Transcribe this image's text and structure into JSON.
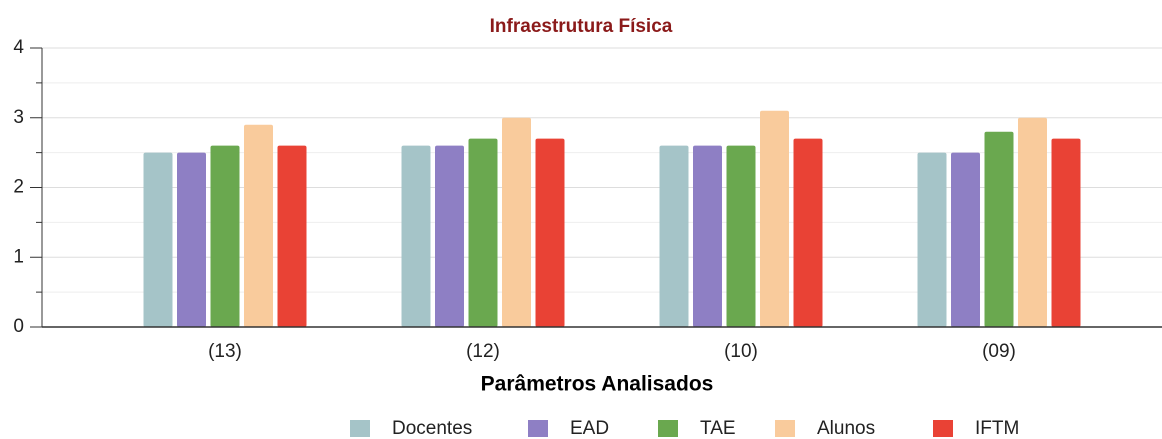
{
  "chart_data": {
    "type": "bar",
    "title": "Infraestrutura Física",
    "x_label": "Parâmetros Analisados",
    "categories": [
      "(13)",
      "(12)",
      "(10)",
      "(09)"
    ],
    "series": [
      {
        "name": "Docentes",
        "color": "#a5c4c8",
        "values": [
          2.5,
          2.6,
          2.6,
          2.5
        ]
      },
      {
        "name": "EAD",
        "color": "#8e7fc4",
        "values": [
          2.5,
          2.6,
          2.6,
          2.5
        ]
      },
      {
        "name": "TAE",
        "color": "#6aa84f",
        "values": [
          2.6,
          2.7,
          2.6,
          2.8
        ]
      },
      {
        "name": "Alunos",
        "color": "#f9cb9c",
        "values": [
          2.9,
          3.0,
          3.1,
          3.0
        ]
      },
      {
        "name": "IFTM",
        "color": "#e94235",
        "values": [
          2.6,
          2.7,
          2.7,
          2.7
        ]
      }
    ],
    "ylim": [
      0,
      4
    ],
    "yticks": [
      0,
      1,
      2,
      3,
      4
    ],
    "minor_yticks": [
      0.5,
      1.5,
      2.5,
      3.5
    ],
    "grid": true,
    "legend": "bottom"
  }
}
